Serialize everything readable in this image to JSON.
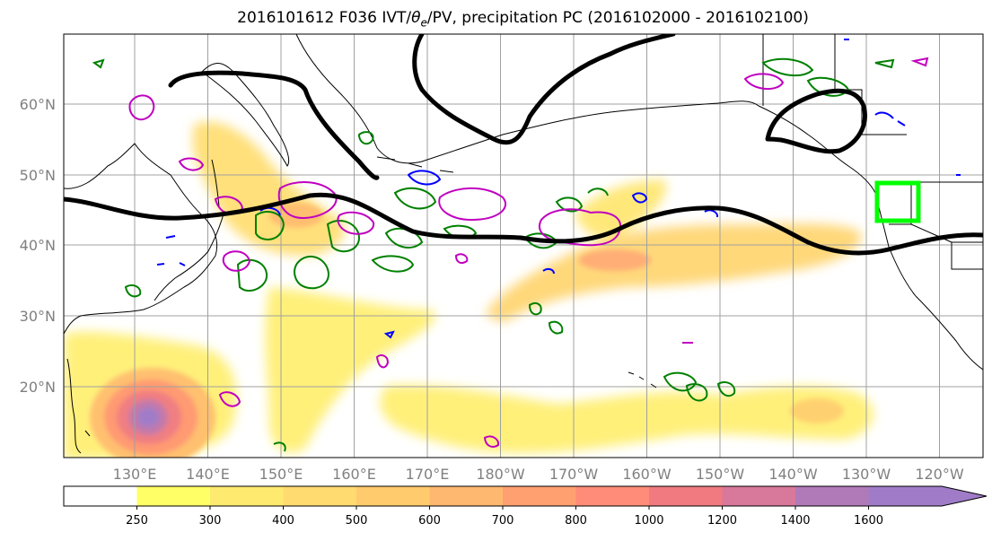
{
  "title": {
    "prefix": "2016101612 F036 IVT/",
    "theta": "θ",
    "theta_sub": "e",
    "suffix": "/PV, precipitation PC (2016102000 - 2016102100)"
  },
  "map": {
    "lat_labels": [
      "20°N",
      "30°N",
      "40°N",
      "50°N",
      "60°N"
    ],
    "lon_labels": [
      "130°E",
      "140°E",
      "150°E",
      "160°E",
      "170°E",
      "180°W",
      "170°W",
      "160°W",
      "150°W",
      "140°W",
      "130°W",
      "120°W"
    ],
    "grid": true,
    "land_outline_color": "#000000",
    "grid_color": "#a0a0a0",
    "highlight_box_color": "#00ff00",
    "pv_contour_color": "#000000",
    "precip_contour_colors": [
      "#008000",
      "#0000ff",
      "#c000c0"
    ]
  },
  "colorbar": {
    "levels": [
      "250",
      "300",
      "400",
      "500",
      "600",
      "700",
      "800",
      "1000",
      "1200",
      "1400",
      "1600"
    ],
    "colors": [
      "#ffffff",
      "#ffff66",
      "#ffea70",
      "#ffdb70",
      "#ffcb6c",
      "#ffb870",
      "#ffa070",
      "#ff8c78",
      "#f07a80",
      "#d8789a",
      "#b07ab8",
      "#a07cc8"
    ]
  }
}
